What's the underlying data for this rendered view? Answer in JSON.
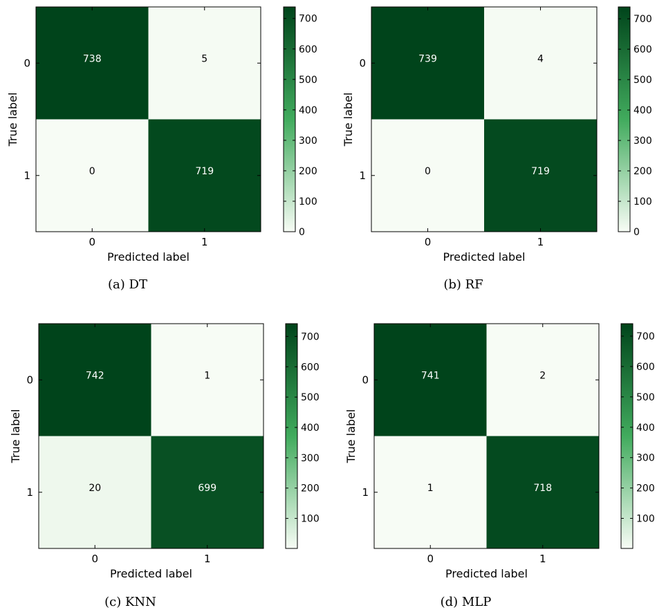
{
  "figure": {
    "colormap": {
      "name": "Greens",
      "low": "#f7fcf5",
      "mid": "#41ab5d",
      "high": "#00441b"
    },
    "text_dark": "#000000",
    "text_light": "#ffffff"
  },
  "chart_data": [
    {
      "type": "heatmap",
      "caption": "(a) DT",
      "xlabel": "Predicted label",
      "ylabel": "True label",
      "x_categories": [
        "0",
        "1"
      ],
      "y_categories": [
        "0",
        "1"
      ],
      "matrix": [
        [
          738,
          5
        ],
        [
          0,
          719
        ]
      ],
      "color_range": [
        0,
        738
      ],
      "colorbar_ticks": [
        0,
        100,
        200,
        300,
        400,
        500,
        600,
        700
      ]
    },
    {
      "type": "heatmap",
      "caption": "(b) RF",
      "xlabel": "Predicted label",
      "ylabel": "True label",
      "x_categories": [
        "0",
        "1"
      ],
      "y_categories": [
        "0",
        "1"
      ],
      "matrix": [
        [
          739,
          4
        ],
        [
          0,
          719
        ]
      ],
      "color_range": [
        0,
        739
      ],
      "colorbar_ticks": [
        0,
        100,
        200,
        300,
        400,
        500,
        600,
        700
      ]
    },
    {
      "type": "heatmap",
      "caption": "(c) KNN",
      "xlabel": "Predicted label",
      "ylabel": "True label",
      "x_categories": [
        "0",
        "1"
      ],
      "y_categories": [
        "0",
        "1"
      ],
      "matrix": [
        [
          742,
          1
        ],
        [
          20,
          699
        ]
      ],
      "color_range": [
        1,
        742
      ],
      "colorbar_ticks": [
        100,
        200,
        300,
        400,
        500,
        600,
        700
      ]
    },
    {
      "type": "heatmap",
      "caption": "(d) MLP",
      "xlabel": "Predicted label",
      "ylabel": "True label",
      "x_categories": [
        "0",
        "1"
      ],
      "y_categories": [
        "0",
        "1"
      ],
      "matrix": [
        [
          741,
          2
        ],
        [
          1,
          718
        ]
      ],
      "color_range": [
        1,
        741
      ],
      "colorbar_ticks": [
        100,
        200,
        300,
        400,
        500,
        600,
        700
      ]
    }
  ]
}
